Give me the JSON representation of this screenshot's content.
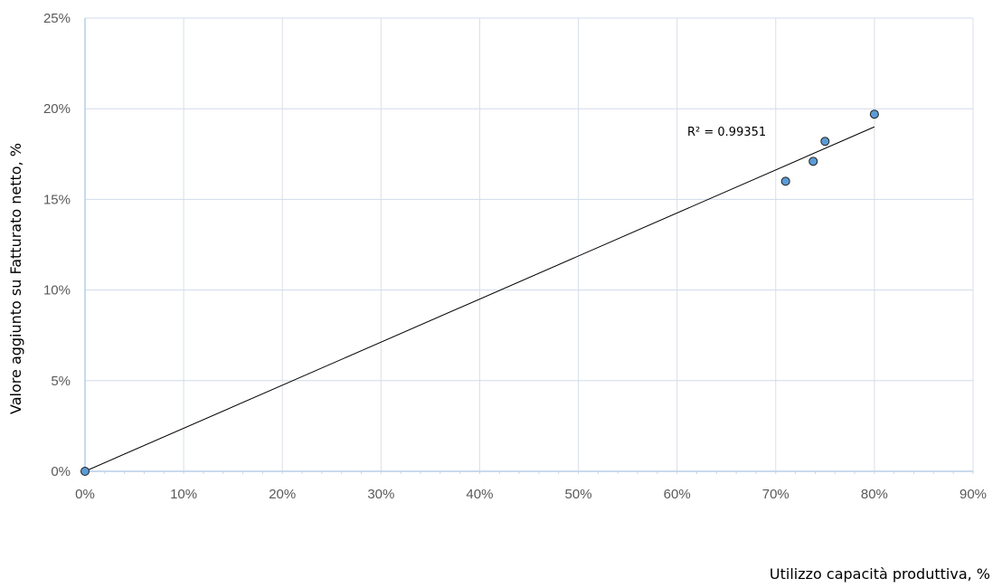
{
  "chart_data": {
    "type": "scatter",
    "title": "",
    "xlabel": "Utilizzo capacità produttiva, %",
    "ylabel": "Valore aggiunto su Fatturato netto, %",
    "xlim": [
      0,
      0.9
    ],
    "ylim": [
      0,
      0.25
    ],
    "x_ticks": [
      0,
      0.1,
      0.2,
      0.3,
      0.4,
      0.5,
      0.6,
      0.7,
      0.8,
      0.9
    ],
    "x_tick_labels": [
      "0%",
      "10%",
      "20%",
      "30%",
      "40%",
      "50%",
      "60%",
      "70%",
      "80%",
      "90%"
    ],
    "y_ticks": [
      0,
      0.05,
      0.1,
      0.15,
      0.2,
      0.25
    ],
    "y_tick_labels": [
      "0%",
      "5%",
      "10%",
      "15%",
      "20%",
      "25%"
    ],
    "grid": true,
    "legend": "none",
    "series": [
      {
        "points": [
          {
            "x": 0.0,
            "y": 0.0
          },
          {
            "x": 0.71,
            "y": 0.16
          },
          {
            "x": 0.738,
            "y": 0.171
          },
          {
            "x": 0.75,
            "y": 0.182
          },
          {
            "x": 0.8,
            "y": 0.197
          }
        ],
        "color": "#5b9bd5"
      }
    ],
    "trendline": {
      "type": "linear",
      "x_range": [
        0.0,
        0.8
      ],
      "y_range": [
        0.0,
        0.19
      ],
      "label": "R² = 0.99351",
      "color": "#000000"
    }
  }
}
